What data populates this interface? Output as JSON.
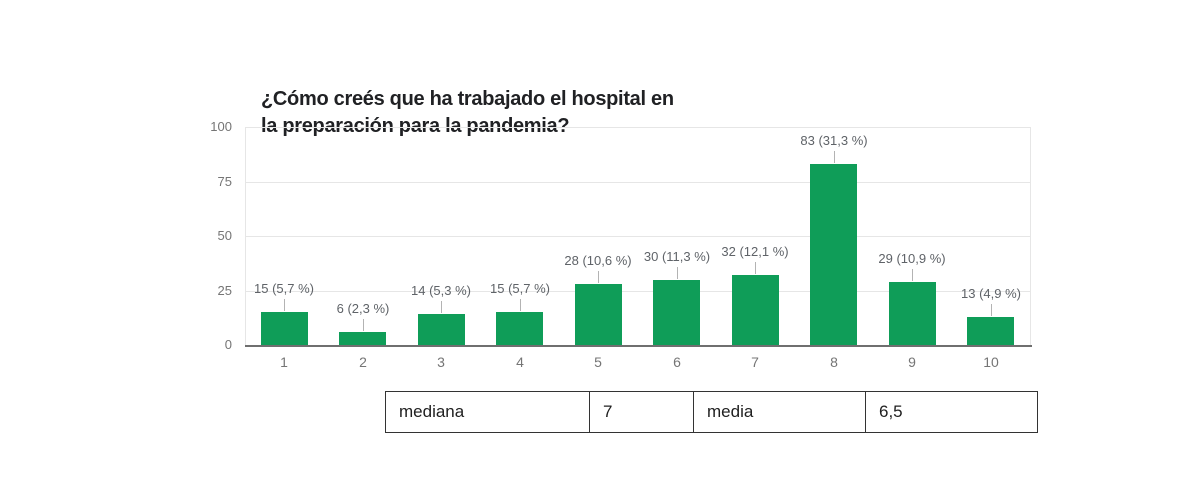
{
  "chart_data": {
    "type": "bar",
    "title": "¿Cómo creés que ha trabajado el hospital en la preparación para la pandemia?",
    "title_lines": [
      "¿Cómo creés que ha trabajado el hospital en",
      "la preparación para la pandemia?"
    ],
    "categories": [
      "1",
      "2",
      "3",
      "4",
      "5",
      "6",
      "7",
      "8",
      "9",
      "10"
    ],
    "values": [
      15,
      6,
      14,
      15,
      28,
      30,
      32,
      83,
      29,
      13
    ],
    "bar_labels": [
      "15 (5,7 %)",
      "6 (2,3 %)",
      "14 (5,3 %)",
      "15 (5,7 %)",
      "28 (10,6 %)",
      "30 (11,3 %)",
      "32 (12,1 %)",
      "83 (31,3 %)",
      "29 (10,9 %)",
      "13 (4,9 %)"
    ],
    "y_ticks": [
      0,
      25,
      50,
      75,
      100
    ],
    "ylim": [
      0,
      100
    ],
    "xlabel": "",
    "ylabel": "",
    "grid": true,
    "legend": "none",
    "colors": {
      "bar": "#0f9d58",
      "gridline": "#e6e6e6",
      "plot_edge": "#e6e6e6",
      "baseline": "#6f6f6f",
      "axis_text": "#757575",
      "bar_label_text": "#5f6368",
      "callout_line": "#b3b3b3",
      "title_text": "#202124"
    }
  },
  "stats_table": {
    "cells": [
      "mediana",
      "7",
      "media",
      "6,5"
    ]
  }
}
